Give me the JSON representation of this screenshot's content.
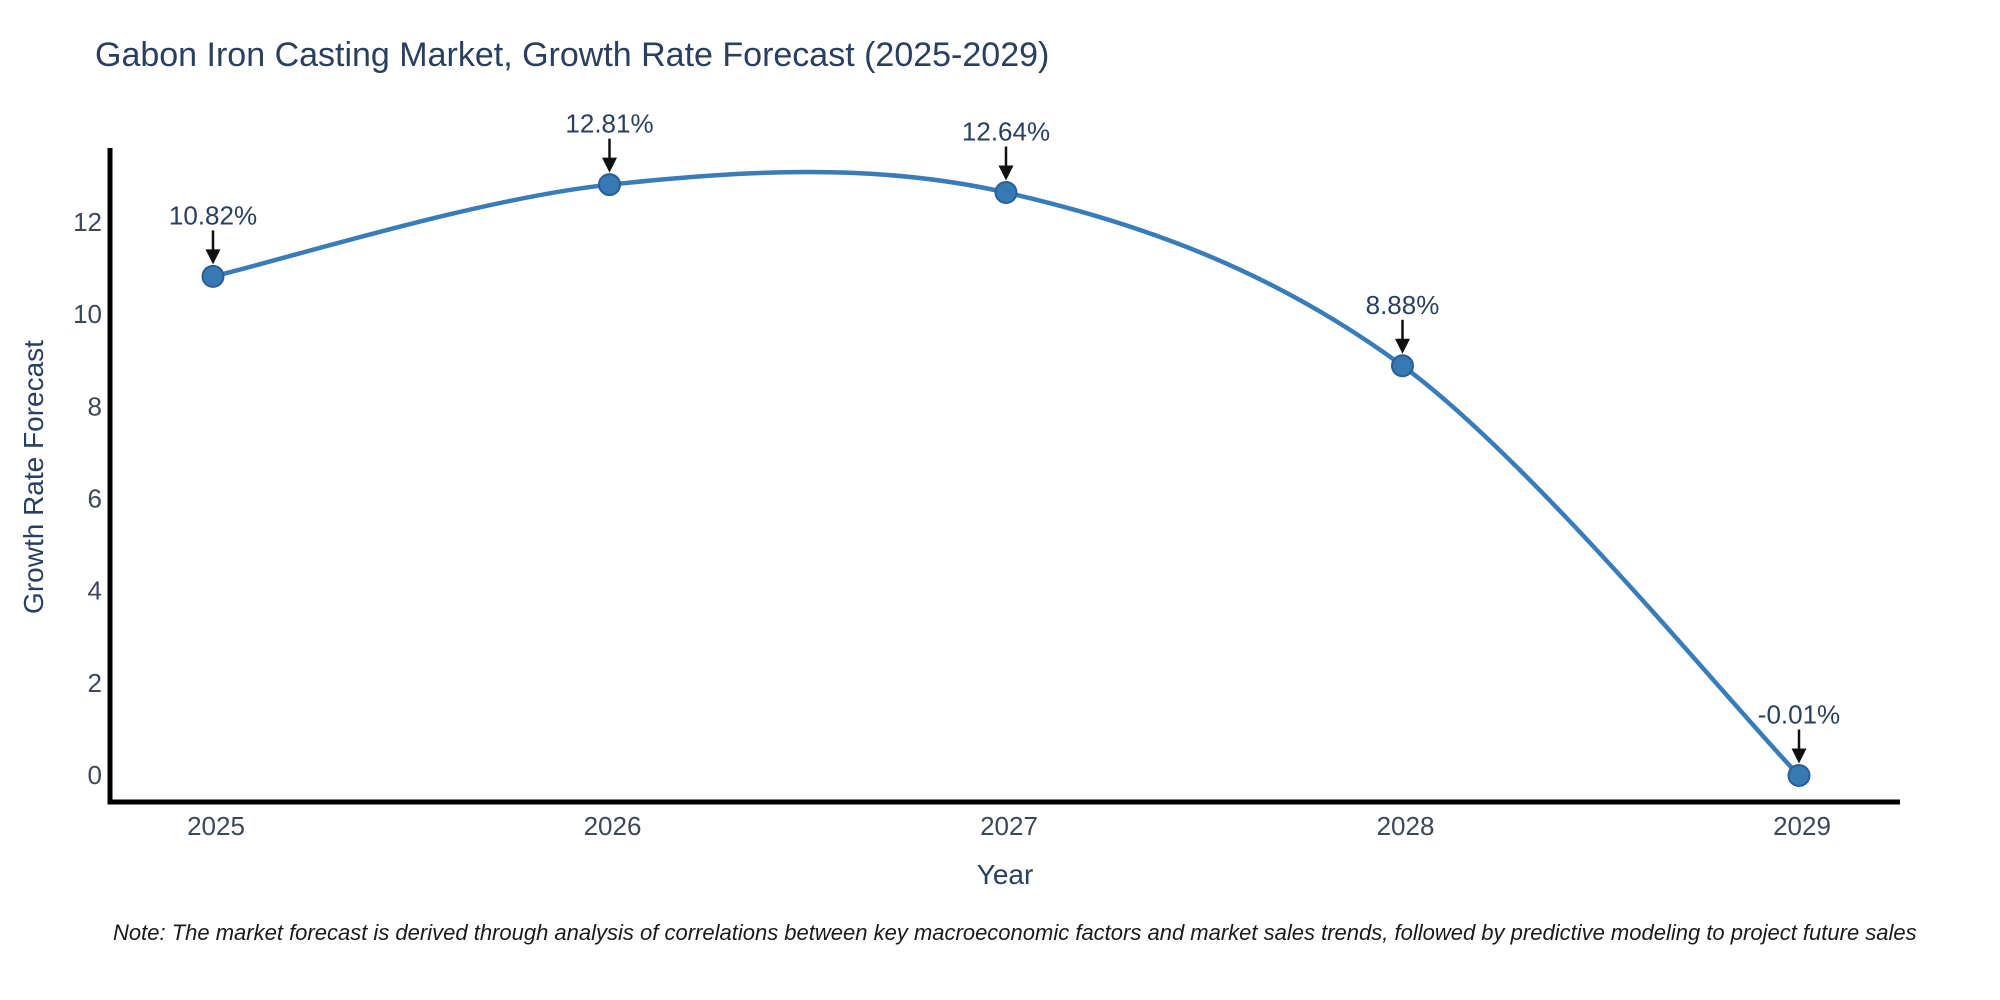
{
  "title": "Gabon Iron Casting Market, Growth Rate Forecast (2025-2029)",
  "note": "Note: The market forecast is derived through analysis of correlations between key macroeconomic factors and market sales trends, followed by predictive modeling to project future sales",
  "chart_data": {
    "type": "line",
    "title": "Gabon Iron Casting Market, Growth Rate Forecast (2025-2029)",
    "xlabel": "Year",
    "ylabel": "Growth Rate Forecast",
    "categories": [
      "2025",
      "2026",
      "2027",
      "2028",
      "2029"
    ],
    "values": [
      10.82,
      12.81,
      12.64,
      8.88,
      -0.01
    ],
    "point_labels": [
      "10.82%",
      "12.81%",
      "12.64%",
      "8.88%",
      "-0.01%"
    ],
    "yticks": [
      0,
      2,
      4,
      6,
      8,
      10,
      12
    ],
    "ylim": [
      -0.6,
      13.6
    ],
    "grid": false,
    "legend_position": "none",
    "line_shape": "spline",
    "marker": "circle",
    "annotation_style": "arrow-down-to-point",
    "colors": {
      "line": "#3a7cb8",
      "marker_fill": "#3679b5",
      "marker_border": "#2b5f94",
      "axis_line": "#000000",
      "title_text": "#2a3f5f",
      "axis_title_text": "#2a3f5f",
      "tick_text": "#3c4758",
      "annotation_text": "#2a3f5f",
      "arrow": "#111111",
      "note_text": "#1a1a1a",
      "background": "#ffffff"
    }
  }
}
